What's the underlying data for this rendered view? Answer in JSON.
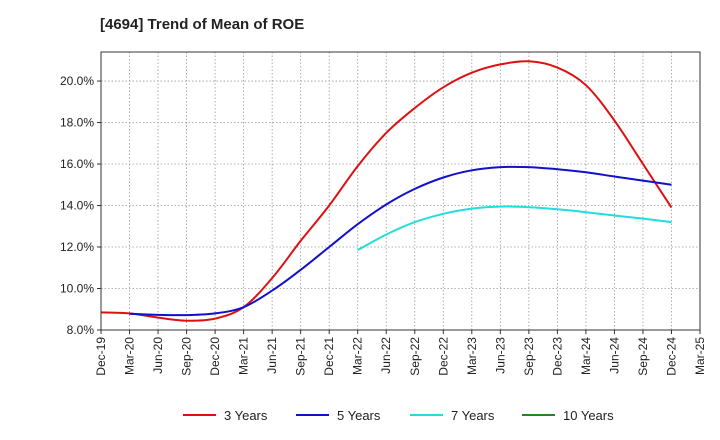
{
  "chart_data": {
    "type": "line",
    "title": "[4694]  Trend of Mean of ROE",
    "xlabel": "",
    "ylabel": "",
    "x": [
      "Dec-19",
      "Mar-20",
      "Jun-20",
      "Sep-20",
      "Dec-20",
      "Mar-21",
      "Jun-21",
      "Sep-21",
      "Dec-21",
      "Mar-22",
      "Jun-22",
      "Sep-22",
      "Dec-22",
      "Mar-23",
      "Jun-23",
      "Sep-23",
      "Dec-23",
      "Mar-24",
      "Jun-24",
      "Sep-24",
      "Dec-24",
      "Mar-25"
    ],
    "ylim": [
      8.0,
      21.4
    ],
    "yticks": [
      8.0,
      10.0,
      12.0,
      14.0,
      16.0,
      18.0,
      20.0
    ],
    "ytick_labels": [
      "8.0%",
      "10.0%",
      "12.0%",
      "14.0%",
      "16.0%",
      "18.0%",
      "20.0%"
    ],
    "grid": true,
    "legend_position": "bottom",
    "series": [
      {
        "name": "3 Years",
        "color": "#dd1111",
        "values": [
          8.85,
          8.8,
          8.6,
          8.45,
          8.55,
          9.1,
          10.5,
          12.3,
          14.0,
          15.9,
          17.5,
          18.7,
          19.7,
          20.4,
          20.8,
          20.95,
          20.65,
          19.8,
          18.1,
          16.0,
          13.9,
          null
        ]
      },
      {
        "name": "5 Years",
        "color": "#1111cc",
        "values": [
          null,
          8.78,
          8.73,
          8.72,
          8.8,
          9.1,
          9.9,
          10.9,
          12.0,
          13.1,
          14.05,
          14.8,
          15.35,
          15.7,
          15.85,
          15.85,
          15.75,
          15.6,
          15.4,
          15.2,
          15.0,
          null
        ]
      },
      {
        "name": "7 Years",
        "color": "#22dddd",
        "values": [
          null,
          null,
          null,
          null,
          null,
          null,
          null,
          null,
          null,
          11.85,
          12.6,
          13.2,
          13.6,
          13.85,
          13.95,
          13.92,
          13.82,
          13.68,
          13.52,
          13.37,
          13.2,
          null
        ]
      },
      {
        "name": "10 Years",
        "color": "#228822",
        "values": [
          null,
          null,
          null,
          null,
          null,
          null,
          null,
          null,
          null,
          null,
          null,
          null,
          null,
          null,
          null,
          null,
          null,
          null,
          null,
          null,
          null,
          null
        ]
      }
    ]
  }
}
